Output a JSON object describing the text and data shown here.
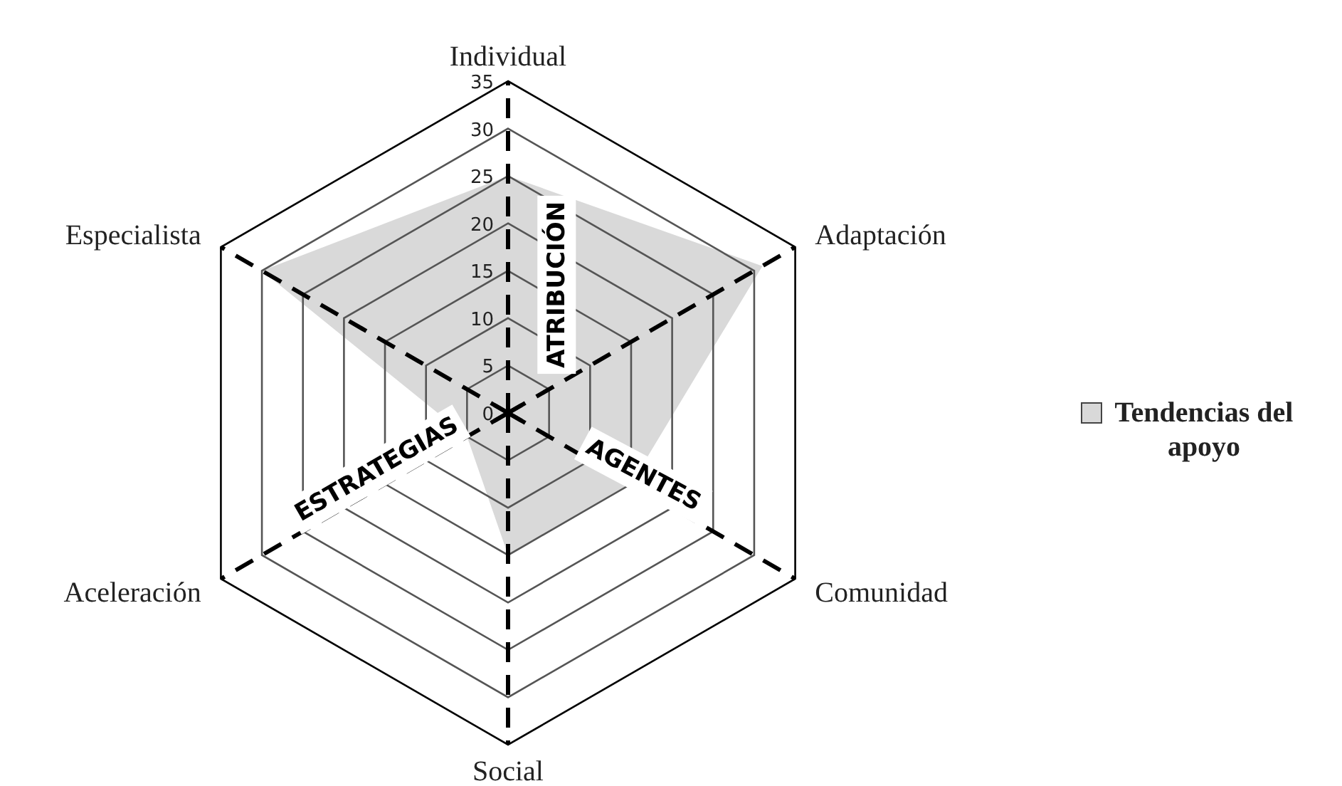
{
  "chart_data": {
    "type": "radar",
    "categories": [
      "Individual",
      "Adaptación",
      "Comunidad",
      "Social",
      "Aceleración",
      "Especialista"
    ],
    "series": [
      {
        "name": "Tendencias del apoyo",
        "color": "#d9d9d9",
        "values": [
          25,
          31,
          15,
          15,
          5,
          30
        ]
      }
    ],
    "ylim": [
      0,
      35
    ],
    "yticks": [
      0,
      5,
      10,
      15,
      20,
      25,
      30,
      35
    ],
    "grid": true,
    "legend": "right",
    "line_style": "dashed",
    "annotations": [
      "ATRIBUCIÓN",
      "AGENTES",
      "ESTRATEGIAS"
    ]
  }
}
